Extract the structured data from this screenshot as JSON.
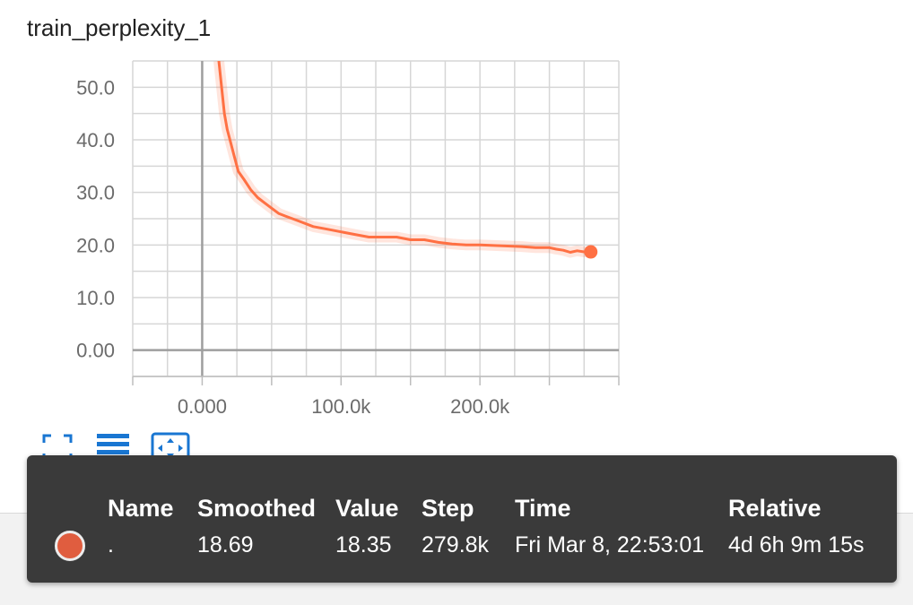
{
  "title": "train_perplexity_1",
  "chart_data": {
    "type": "line",
    "title": "train_perplexity_1",
    "xlabel": "",
    "ylabel": "",
    "xlim": [
      -50000,
      300000
    ],
    "ylim": [
      -5,
      55
    ],
    "x_ticks": [
      0,
      100000,
      200000
    ],
    "x_tick_labels": [
      "0.000",
      "100.0k",
      "200.0k"
    ],
    "y_ticks": [
      0,
      10,
      20,
      30,
      40,
      50
    ],
    "y_tick_labels": [
      "0.00",
      "10.0",
      "20.0",
      "30.0",
      "40.0",
      "50.0"
    ],
    "grid": true,
    "series": [
      {
        "color": "#ff7043",
        "x": [
          12000,
          14000,
          16000,
          18000,
          20000,
          23000,
          26000,
          30000,
          35000,
          40000,
          45000,
          50000,
          55000,
          60000,
          65000,
          70000,
          80000,
          90000,
          100000,
          110000,
          120000,
          130000,
          140000,
          150000,
          160000,
          170000,
          180000,
          190000,
          200000,
          210000,
          220000,
          230000,
          240000,
          250000,
          255000,
          260000,
          265000,
          270000,
          275000,
          279800
        ],
        "values": [
          55.0,
          50.0,
          45.0,
          42.0,
          40.0,
          37.0,
          34.0,
          32.5,
          30.5,
          29.0,
          28.0,
          27.0,
          26.0,
          25.5,
          25.0,
          24.5,
          23.5,
          23.0,
          22.5,
          22.0,
          21.5,
          21.5,
          21.5,
          21.0,
          21.0,
          20.5,
          20.2,
          20.0,
          20.0,
          19.9,
          19.8,
          19.7,
          19.5,
          19.5,
          19.2,
          19.0,
          18.6,
          18.9,
          18.7,
          18.69
        ]
      }
    ]
  },
  "toolbar": {
    "icons": [
      "fullscreen-icon",
      "list-icon",
      "fit-domain-icon"
    ],
    "color": "#1976d2"
  },
  "tooltip": {
    "headers": [
      "Name",
      "Smoothed",
      "Value",
      "Step",
      "Time",
      "Relative"
    ],
    "row": {
      "name": ".",
      "smoothed": "18.69",
      "value": "18.35",
      "step": "279.8k",
      "time": "Fri Mar 8, 22:53:01",
      "relative": "4d 6h 9m 15s",
      "swatch_color": "#e05d3f"
    }
  }
}
